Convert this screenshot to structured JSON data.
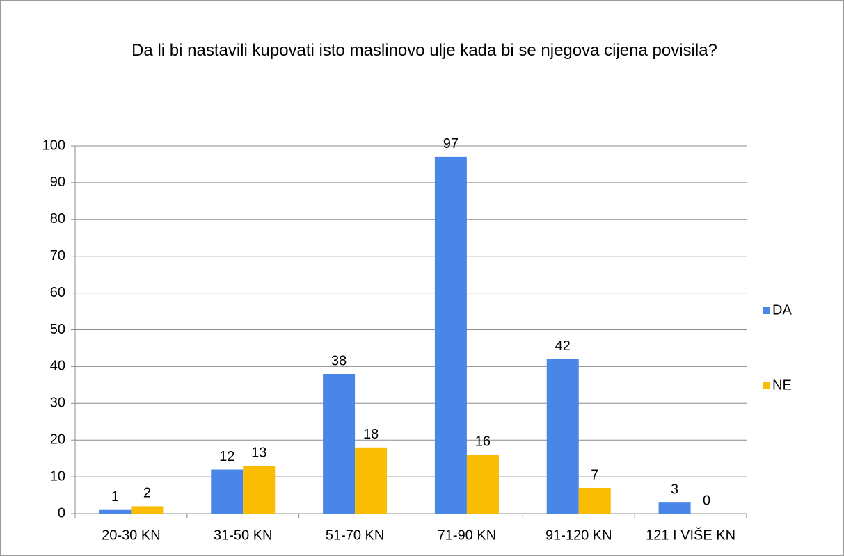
{
  "chart_data": {
    "type": "bar",
    "title": "Da li bi nastavili kupovati isto maslinovo ulje kada bi se njegova cijena povisila?",
    "categories": [
      "20-30 KN",
      "31-50 KN",
      "51-70 KN",
      "71-90 KN",
      "91-120 KN",
      "121 I VIŠE KN"
    ],
    "series": [
      {
        "name": "DA",
        "color": "#4a86e8",
        "values": [
          1,
          12,
          38,
          97,
          42,
          3
        ]
      },
      {
        "name": "NE",
        "color": "#fbbc04",
        "values": [
          2,
          13,
          18,
          16,
          7,
          0
        ]
      }
    ],
    "ylim": [
      0,
      100
    ],
    "yticks": [
      0,
      10,
      20,
      30,
      40,
      50,
      60,
      70,
      80,
      90,
      100
    ],
    "grid": true,
    "legend": "right",
    "data_labels": true
  }
}
